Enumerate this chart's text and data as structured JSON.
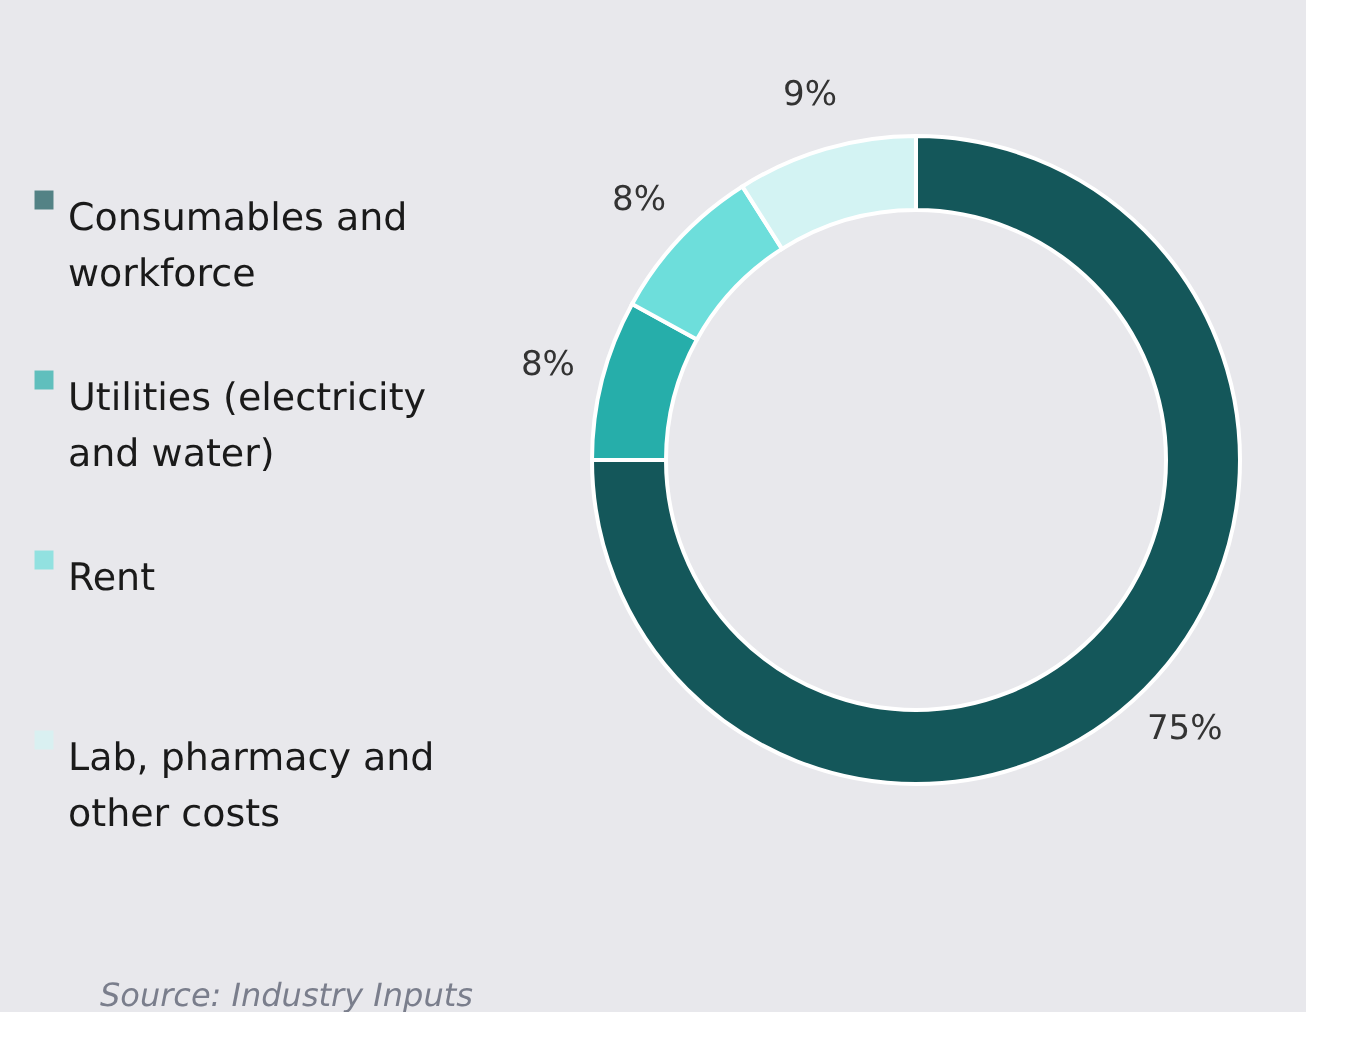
{
  "chart_data": {
    "type": "donut",
    "categories": [
      "Consumables and workforce",
      "Utilities (electricity and water)",
      "Rent",
      "Lab, pharmacy and other costs"
    ],
    "values": [
      75,
      8,
      8,
      9
    ],
    "value_labels": [
      "75%",
      "8%",
      "8%",
      "9%"
    ],
    "colors": [
      "#14575a",
      "#26aeaa",
      "#6ddedb",
      "#d3f3f3"
    ],
    "legend": "left",
    "annotations": [
      "Source: Industry Inputs"
    ]
  }
}
